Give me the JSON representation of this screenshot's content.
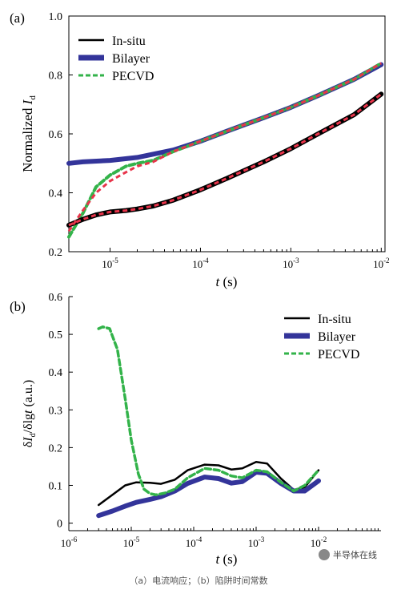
{
  "caption": "（a）电流响应；（b）陷阱时间常数",
  "watermark": {
    "text": "半导体在线",
    "icon": "wechat-logo-icon"
  },
  "chart_data": [
    {
      "type": "line",
      "panel_label": "(a)",
      "xlabel": "t (s)",
      "ylabel": "Normalized I_d",
      "x_scale": "log",
      "xlim": [
        3.5e-06,
        0.011
      ],
      "ylim": [
        0.2,
        1.0
      ],
      "yticks": [
        "0.2",
        "0.4",
        "0.6",
        "0.8",
        "1.0"
      ],
      "xticks": [
        {
          "value": 1e-05,
          "base": "10",
          "exp": "-5"
        },
        {
          "value": 0.0001,
          "base": "10",
          "exp": "-4"
        },
        {
          "value": 0.001,
          "base": "10",
          "exp": "-3"
        },
        {
          "value": 0.01,
          "base": "10",
          "exp": "-2"
        }
      ],
      "legend_position": "top-left",
      "series": [
        {
          "name": "In-situ",
          "color": "#000000",
          "x": [
            3.5e-06,
            5e-06,
            7e-06,
            1e-05,
            1.5e-05,
            2e-05,
            3e-05,
            5e-05,
            0.0001,
            0.0002,
            0.0005,
            0.001,
            0.002,
            0.005,
            0.01
          ],
          "y": [
            0.29,
            0.31,
            0.325,
            0.335,
            0.34,
            0.345,
            0.355,
            0.375,
            0.41,
            0.45,
            0.505,
            0.55,
            0.6,
            0.665,
            0.735
          ]
        },
        {
          "name": "Bilayer",
          "color": "#33349a",
          "x": [
            3.5e-06,
            5e-06,
            1e-05,
            2e-05,
            5e-05,
            0.0001,
            0.0002,
            0.0005,
            0.001,
            0.002,
            0.005,
            0.01
          ],
          "y": [
            0.5,
            0.505,
            0.51,
            0.52,
            0.545,
            0.575,
            0.61,
            0.655,
            0.69,
            0.73,
            0.785,
            0.835
          ]
        },
        {
          "name": "PECVD",
          "color": "#33b34a",
          "x": [
            3.5e-06,
            5e-06,
            7e-06,
            1e-05,
            1.5e-05,
            2e-05,
            3e-05,
            5e-05,
            0.0001,
            0.0002,
            0.0005,
            0.001,
            0.002,
            0.005,
            0.01
          ],
          "y": [
            0.25,
            0.33,
            0.42,
            0.46,
            0.49,
            0.5,
            0.51,
            0.54,
            0.575,
            0.61,
            0.655,
            0.69,
            0.73,
            0.785,
            0.84
          ]
        }
      ],
      "fit_lines": [
        {
          "color": "#e8344a",
          "x": [
            3.5e-06,
            5e-06,
            7e-06,
            1e-05,
            1.5e-05,
            2e-05,
            3e-05,
            5e-05,
            0.0001,
            0.0002,
            0.0005,
            0.001,
            0.002,
            0.005,
            0.01
          ],
          "y": [
            0.29,
            0.31,
            0.325,
            0.335,
            0.34,
            0.345,
            0.355,
            0.375,
            0.41,
            0.45,
            0.505,
            0.55,
            0.6,
            0.665,
            0.735
          ]
        },
        {
          "color": "#e8344a",
          "x": [
            3.5e-06,
            5e-06,
            7e-06,
            1e-05,
            1.5e-05,
            2e-05,
            3e-05,
            5e-05,
            0.0001,
            0.0002,
            0.0005,
            0.001,
            0.002,
            0.005,
            0.01
          ],
          "y": [
            0.27,
            0.34,
            0.4,
            0.44,
            0.47,
            0.49,
            0.505,
            0.54,
            0.575,
            0.61,
            0.655,
            0.69,
            0.73,
            0.785,
            0.84
          ]
        }
      ]
    },
    {
      "type": "line",
      "panel_label": "(b)",
      "xlabel": "t (s)",
      "ylabel": "δI_d/δlgt (a.u.)",
      "x_scale": "log",
      "xlim": [
        1e-06,
        0.1
      ],
      "ylim": [
        -0.02,
        0.6
      ],
      "yticks": [
        "0",
        "0.1",
        "0.2",
        "0.3",
        "0.4",
        "0.5",
        "0.6"
      ],
      "xticks": [
        {
          "value": 1e-06,
          "base": "10",
          "exp": "-6"
        },
        {
          "value": 1e-05,
          "base": "10",
          "exp": "-5"
        },
        {
          "value": 0.0001,
          "base": "10",
          "exp": "-4"
        },
        {
          "value": 0.001,
          "base": "10",
          "exp": "-3"
        },
        {
          "value": 0.01,
          "base": "10",
          "exp": "-2"
        }
      ],
      "legend_position": "top-right",
      "series": [
        {
          "name": "In-situ",
          "color": "#000000",
          "x": [
            3e-06,
            5e-06,
            8e-06,
            1.2e-05,
            2e-05,
            3e-05,
            5e-05,
            8e-05,
            0.00015,
            0.00025,
            0.0004,
            0.0006,
            0.001,
            0.0015,
            0.0025,
            0.004,
            0.006,
            0.01
          ],
          "y": [
            0.048,
            0.075,
            0.1,
            0.108,
            0.107,
            0.104,
            0.115,
            0.14,
            0.155,
            0.153,
            0.142,
            0.145,
            0.162,
            0.158,
            0.118,
            0.088,
            0.095,
            0.14
          ]
        },
        {
          "name": "Bilayer",
          "color": "#33349a",
          "x": [
            3e-06,
            5e-06,
            8e-06,
            1.2e-05,
            2e-05,
            3e-05,
            5e-05,
            8e-05,
            0.00015,
            0.00025,
            0.0004,
            0.0006,
            0.001,
            0.0015,
            0.0025,
            0.004,
            0.006,
            0.01
          ],
          "y": [
            0.02,
            0.032,
            0.045,
            0.055,
            0.063,
            0.07,
            0.085,
            0.105,
            0.122,
            0.118,
            0.106,
            0.11,
            0.135,
            0.132,
            0.105,
            0.085,
            0.085,
            0.112
          ]
        },
        {
          "name": "PECVD",
          "color": "#33b34a",
          "x": [
            3e-06,
            3.5e-06,
            4.5e-06,
            6e-06,
            8e-06,
            1e-05,
            1.3e-05,
            1.6e-05,
            2e-05,
            2.5e-05,
            3.5e-05,
            5e-05,
            8e-05,
            0.00015,
            0.00025,
            0.0004,
            0.0006,
            0.001,
            0.0015,
            0.0025,
            0.004,
            0.006,
            0.01
          ],
          "y": [
            0.515,
            0.52,
            0.515,
            0.46,
            0.33,
            0.22,
            0.13,
            0.09,
            0.078,
            0.075,
            0.08,
            0.09,
            0.12,
            0.145,
            0.14,
            0.125,
            0.12,
            0.14,
            0.136,
            0.108,
            0.085,
            0.1,
            0.14
          ]
        }
      ]
    }
  ]
}
